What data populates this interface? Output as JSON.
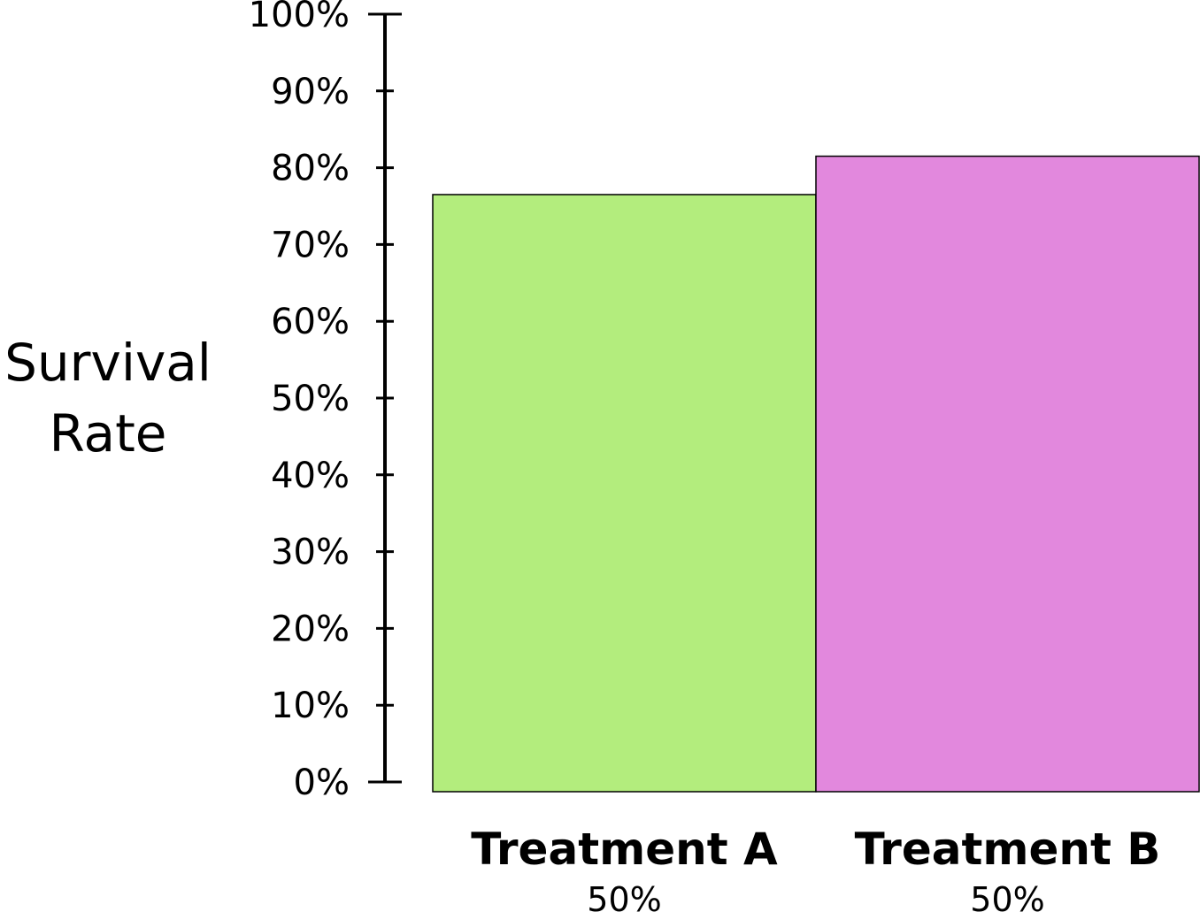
{
  "chart_data": {
    "type": "bar",
    "title": "",
    "xlabel": "",
    "ylabel_lines": [
      "Survival",
      "Rate"
    ],
    "ylim": [
      0,
      100
    ],
    "yticks": [
      "0%",
      "10%",
      "20%",
      "30%",
      "40%",
      "50%",
      "60%",
      "70%",
      "80%",
      "90%",
      "100%"
    ],
    "grid": false,
    "legend": "none",
    "categories": [
      "Treatment A",
      "Treatment B"
    ],
    "category_sublabels": [
      "50%",
      "50%"
    ],
    "values": [
      76.5,
      81.5
    ],
    "colors": [
      "#b3ed7d",
      "#e288dd"
    ]
  }
}
